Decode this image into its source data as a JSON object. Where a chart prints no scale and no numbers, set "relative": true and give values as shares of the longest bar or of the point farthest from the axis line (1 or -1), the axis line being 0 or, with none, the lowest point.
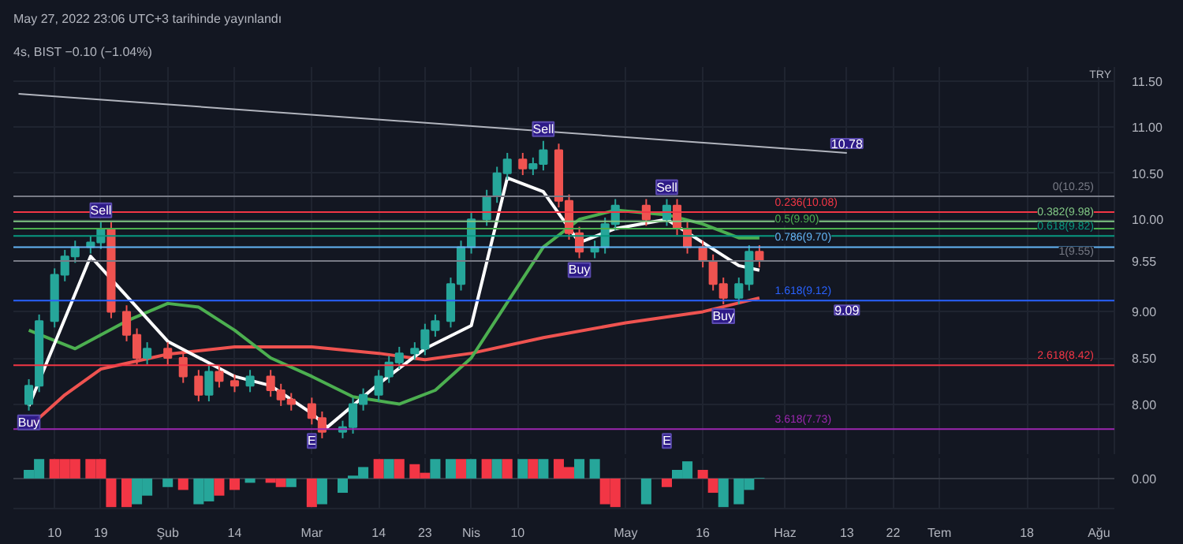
{
  "chart_data": [
    {
      "type": "candlestick",
      "title": "May 27, 2022 23:06 UTC+3 tarihinde yayınlandı",
      "subtitle": "4s, BIST  −0.10 (−1.04%)",
      "ylabel": "TRY",
      "x": [
        "2022-01-05",
        "2022-01-07",
        "2022-01-10",
        "2022-01-12",
        "2022-01-14",
        "2022-01-17",
        "2022-01-19",
        "2022-01-21",
        "2022-01-24",
        "2022-01-26",
        "2022-01-28",
        "2022-02-01",
        "2022-02-04",
        "2022-02-07",
        "2022-02-09",
        "2022-02-11",
        "2022-02-14",
        "2022-02-17",
        "2022-02-21",
        "2022-02-23",
        "2022-02-25",
        "2022-03-01",
        "2022-03-03",
        "2022-03-07",
        "2022-03-09",
        "2022-03-11",
        "2022-03-14",
        "2022-03-16",
        "2022-03-18",
        "2022-03-21",
        "2022-03-23",
        "2022-03-25",
        "2022-03-28",
        "2022-03-30",
        "2022-04-01",
        "2022-04-04",
        "2022-04-06",
        "2022-04-08",
        "2022-04-11",
        "2022-04-13",
        "2022-04-15",
        "2022-04-18",
        "2022-04-20",
        "2022-04-22",
        "2022-04-25",
        "2022-04-27",
        "2022-04-29",
        "2022-05-05",
        "2022-05-09",
        "2022-05-11",
        "2022-05-13",
        "2022-05-16",
        "2022-05-18",
        "2022-05-20",
        "2022-05-23",
        "2022-05-25",
        "2022-05-27"
      ],
      "ohlc": [
        [
          8.0,
          8.27,
          7.93,
          8.2
        ],
        [
          8.2,
          8.97,
          8.13,
          8.9
        ],
        [
          8.9,
          9.47,
          8.83,
          9.4
        ],
        [
          9.4,
          9.67,
          9.33,
          9.6
        ],
        [
          9.6,
          9.77,
          9.53,
          9.7
        ],
        [
          9.7,
          9.82,
          9.63,
          9.75
        ],
        [
          9.75,
          9.97,
          9.68,
          9.9
        ],
        [
          9.9,
          9.97,
          8.93,
          9.0
        ],
        [
          9.0,
          9.07,
          8.68,
          8.75
        ],
        [
          8.75,
          8.82,
          8.43,
          8.5
        ],
        [
          8.5,
          8.67,
          8.43,
          8.6
        ],
        [
          8.6,
          8.67,
          8.43,
          8.5
        ],
        [
          8.5,
          8.57,
          8.23,
          8.3
        ],
        [
          8.3,
          8.37,
          8.03,
          8.1
        ],
        [
          8.1,
          8.42,
          8.03,
          8.35
        ],
        [
          8.35,
          8.42,
          8.18,
          8.25
        ],
        [
          8.25,
          8.32,
          8.13,
          8.2
        ],
        [
          8.2,
          8.37,
          8.13,
          8.3
        ],
        [
          8.3,
          8.37,
          8.08,
          8.15
        ],
        [
          8.15,
          8.22,
          7.98,
          8.05
        ],
        [
          8.05,
          8.12,
          7.93,
          8.0
        ],
        [
          8.0,
          8.07,
          7.78,
          7.85
        ],
        [
          7.85,
          7.92,
          7.63,
          7.7
        ],
        [
          7.7,
          7.82,
          7.63,
          7.75
        ],
        [
          7.75,
          8.07,
          7.68,
          8.0
        ],
        [
          8.0,
          8.17,
          7.93,
          8.1
        ],
        [
          8.1,
          8.37,
          8.03,
          8.3
        ],
        [
          8.3,
          8.52,
          8.23,
          8.45
        ],
        [
          8.45,
          8.62,
          8.38,
          8.55
        ],
        [
          8.55,
          8.67,
          8.48,
          8.6
        ],
        [
          8.6,
          8.87,
          8.53,
          8.8
        ],
        [
          8.8,
          8.97,
          8.73,
          8.9
        ],
        [
          8.9,
          9.37,
          8.83,
          9.3
        ],
        [
          9.3,
          9.77,
          9.23,
          9.7
        ],
        [
          9.7,
          10.07,
          9.63,
          10.0
        ],
        [
          10.0,
          10.32,
          9.93,
          10.25
        ],
        [
          10.25,
          10.57,
          10.18,
          10.5
        ],
        [
          10.5,
          10.72,
          10.43,
          10.65
        ],
        [
          10.65,
          10.72,
          10.48,
          10.55
        ],
        [
          10.55,
          10.67,
          10.48,
          10.6
        ],
        [
          10.6,
          10.85,
          10.53,
          10.75
        ],
        [
          10.75,
          10.82,
          10.13,
          10.2
        ],
        [
          10.2,
          10.27,
          9.78,
          9.85
        ],
        [
          9.85,
          9.92,
          9.58,
          9.65
        ],
        [
          9.65,
          9.77,
          9.58,
          9.7
        ],
        [
          9.7,
          10.02,
          9.63,
          9.95
        ],
        [
          9.95,
          10.22,
          9.88,
          10.15
        ],
        [
          10.15,
          10.22,
          9.93,
          10.0
        ],
        [
          10.0,
          10.22,
          9.93,
          10.15
        ],
        [
          10.15,
          10.22,
          9.83,
          9.9
        ],
        [
          9.9,
          9.97,
          9.63,
          9.7
        ],
        [
          9.7,
          9.77,
          9.48,
          9.55
        ],
        [
          9.55,
          9.62,
          9.23,
          9.3
        ],
        [
          9.3,
          9.37,
          9.08,
          9.15
        ],
        [
          9.15,
          9.37,
          9.08,
          9.3
        ],
        [
          9.3,
          9.72,
          9.23,
          9.65
        ],
        [
          9.65,
          9.72,
          9.48,
          9.55
        ]
      ],
      "series": [
        {
          "type": "line",
          "color": "#b2b5be",
          "x": [
            "2022-01-03",
            "2022-06-13"
          ],
          "values": [
            11.36,
            10.72
          ]
        },
        {
          "type": "line",
          "color": "#ef5350",
          "x": [
            "2022-01-05",
            "2022-01-12",
            "2022-01-19",
            "2022-02-01",
            "2022-02-14",
            "2022-03-01",
            "2022-03-14",
            "2022-03-23",
            "2022-04-01",
            "2022-04-15",
            "2022-05-01",
            "2022-05-16",
            "2022-05-27"
          ],
          "values": [
            7.75,
            8.1,
            8.38,
            8.54,
            8.62,
            8.62,
            8.55,
            8.48,
            8.55,
            8.72,
            8.88,
            9.0,
            9.15
          ]
        },
        {
          "type": "line",
          "color": "#4caf50",
          "x": [
            "2022-01-05",
            "2022-01-14",
            "2022-01-24",
            "2022-02-01",
            "2022-02-07",
            "2022-02-14",
            "2022-02-21",
            "2022-03-01",
            "2022-03-09",
            "2022-03-18",
            "2022-03-25",
            "2022-04-01",
            "2022-04-08",
            "2022-04-15",
            "2022-04-22",
            "2022-04-29",
            "2022-05-09",
            "2022-05-16",
            "2022-05-23",
            "2022-05-27"
          ],
          "values": [
            8.8,
            8.6,
            8.9,
            9.09,
            9.05,
            8.8,
            8.5,
            8.3,
            8.08,
            8.0,
            8.15,
            8.5,
            9.1,
            9.7,
            10.0,
            10.1,
            10.05,
            9.95,
            9.8,
            9.8
          ]
        },
        {
          "type": "line",
          "color": "#ffffff",
          "x": [
            "2022-01-05",
            "2022-01-17",
            "2022-02-01",
            "2022-02-14",
            "2022-02-21",
            "2022-03-01",
            "2022-03-04",
            "2022-03-14",
            "2022-03-23",
            "2022-04-01",
            "2022-04-08",
            "2022-04-15",
            "2022-04-22",
            "2022-04-29",
            "2022-05-09",
            "2022-05-16",
            "2022-05-23",
            "2022-05-27"
          ],
          "values": [
            7.98,
            9.6,
            8.68,
            8.3,
            8.2,
            7.9,
            7.75,
            8.22,
            8.6,
            8.85,
            10.45,
            10.3,
            9.75,
            9.9,
            10.0,
            9.75,
            9.5,
            9.45
          ]
        }
      ],
      "xlim": [
        "2022-01-02",
        "2022-08-04"
      ],
      "xticks": [
        "2022-01-10",
        "2022-01-19",
        "2022-02-01",
        "2022-02-14",
        "2022-03-01",
        "2022-03-14",
        "2022-03-23",
        "2022-04-01",
        "2022-04-10",
        "2022-05-01",
        "2022-05-16",
        "2022-06-01",
        "2022-06-13",
        "2022-06-22",
        "2022-07-01",
        "2022-07-18",
        "2022-08-01"
      ],
      "ylim": [
        7.45,
        11.65
      ],
      "yticks": [
        {
          "value": 8,
          "label": "8.00"
        },
        {
          "value": 8.5,
          "label": "8.50"
        },
        {
          "value": 9,
          "label": "9.00"
        },
        {
          "value": 9.55,
          "label": "9.55"
        },
        {
          "value": 10,
          "label": "10.00"
        },
        {
          "value": 10.5,
          "label": "10.50"
        },
        {
          "value": 11,
          "label": "11.00"
        },
        {
          "value": 11.5,
          "label": "11.50"
        }
      ],
      "ref_lines": [
        {
          "axis": "y",
          "value": 10.25,
          "label": "0(10.25)",
          "color": "#787b86"
        },
        {
          "axis": "y",
          "value": 10.08,
          "label": "0.236(10.08)",
          "color": "#f23645"
        },
        {
          "axis": "y",
          "value": 9.98,
          "label": "0.382(9.98)",
          "color": "#81c784"
        },
        {
          "axis": "y",
          "value": 9.9,
          "label": "0.5(9.90)",
          "color": "#4caf50"
        },
        {
          "axis": "y",
          "value": 9.82,
          "label": "0.618(9.82)",
          "color": "#089981"
        },
        {
          "axis": "y",
          "value": 9.7,
          "label": "0.786(9.70)",
          "color": "#64b5f6"
        },
        {
          "axis": "y",
          "value": 9.55,
          "label": "1(9.55)",
          "color": "#787b86"
        },
        {
          "axis": "y",
          "value": 9.12,
          "label": "1.618(9.12)",
          "color": "#2962ff"
        },
        {
          "axis": "y",
          "value": 8.42,
          "label": "2.618(8.42)",
          "color": "#f23645"
        },
        {
          "axis": "y",
          "value": 7.73,
          "label": "3.618(7.73)",
          "color": "#9c27b0"
        }
      ],
      "annotations": [
        {
          "text": "10.78",
          "x": "2022-06-13",
          "y": 10.72
        },
        {
          "text": "9.09",
          "x": "2022-06-13",
          "y": 9.12
        },
        {
          "text": "Sell",
          "x": "2022-01-19",
          "y": 9.97
        },
        {
          "text": "Sell",
          "x": "2022-04-15",
          "y": 10.85
        },
        {
          "text": "Sell",
          "x": "2022-05-09",
          "y": 10.22
        },
        {
          "text": "Buy",
          "x": "2022-01-05",
          "y": 7.93
        },
        {
          "text": "Buy",
          "x": "2022-04-22",
          "y": 9.58
        },
        {
          "text": "Buy",
          "x": "2022-05-20",
          "y": 9.08
        },
        {
          "text": "E",
          "x": "2022-03-01",
          "y": 7.73
        },
        {
          "text": "E",
          "x": "2022-05-09",
          "y": 7.73
        }
      ],
      "grid": true,
      "tick_labels": "y"
    },
    {
      "type": "bar",
      "relative": true,
      "x": [
        "2022-01-05",
        "2022-01-07",
        "2022-01-10",
        "2022-01-12",
        "2022-01-14",
        "2022-01-17",
        "2022-01-19",
        "2022-01-21",
        "2022-01-24",
        "2022-01-26",
        "2022-01-28",
        "2022-02-01",
        "2022-02-04",
        "2022-02-07",
        "2022-02-09",
        "2022-02-11",
        "2022-02-14",
        "2022-02-17",
        "2022-02-21",
        "2022-02-23",
        "2022-02-25",
        "2022-03-01",
        "2022-03-03",
        "2022-03-07",
        "2022-03-09",
        "2022-03-11",
        "2022-03-14",
        "2022-03-16",
        "2022-03-18",
        "2022-03-21",
        "2022-03-23",
        "2022-03-25",
        "2022-03-28",
        "2022-03-30",
        "2022-04-01",
        "2022-04-04",
        "2022-04-06",
        "2022-04-08",
        "2022-04-11",
        "2022-04-13",
        "2022-04-15",
        "2022-04-18",
        "2022-04-20",
        "2022-04-22",
        "2022-04-25",
        "2022-04-27",
        "2022-04-29",
        "2022-05-05",
        "2022-05-09",
        "2022-05-11",
        "2022-05-13",
        "2022-05-16",
        "2022-05-18",
        "2022-05-20",
        "2022-05-23",
        "2022-05-25",
        "2022-05-27"
      ],
      "values": [
        0.3,
        0.68,
        0.68,
        0.68,
        0.68,
        0.68,
        0.68,
        -1,
        -1,
        -0.9,
        -0.6,
        -0.3,
        -0.4,
        -0.9,
        -0.8,
        -0.6,
        -0.4,
        -0.15,
        -0.15,
        -0.3,
        -0.3,
        -1,
        -0.9,
        -0.5,
        0.1,
        0.4,
        0.68,
        0.68,
        0.68,
        0.5,
        0.2,
        0.68,
        0.68,
        0.68,
        0.68,
        0.68,
        0.68,
        0.68,
        0.68,
        0.68,
        0.68,
        0.68,
        0.4,
        0.68,
        0.68,
        -0.9,
        -1,
        -0.9,
        -0.3,
        0.3,
        0.6,
        0.3,
        -0.5,
        -1,
        -0.9,
        -0.4,
        0.02
      ],
      "colors": [
        "#26a69a",
        "#26a69a",
        "#f23645",
        "#f23645",
        "#f23645",
        "#f23645",
        "#f23645",
        "#f23645",
        "#f23645",
        "#26a69a",
        "#26a69a",
        "#26a69a",
        "#f23645",
        "#26a69a",
        "#26a69a",
        "#f23645",
        "#f23645",
        "#26a69a",
        "#f23645",
        "#f23645",
        "#26a69a",
        "#f23645",
        "#26a69a",
        "#26a69a",
        "#26a69a",
        "#26a69a",
        "#f23645",
        "#26a69a",
        "#f23645",
        "#f23645",
        "#f23645",
        "#26a69a",
        "#26a69a",
        "#f23645",
        "#26a69a",
        "#f23645",
        "#26a69a",
        "#f23645",
        "#26a69a",
        "#f23645",
        "#26a69a",
        "#f23645",
        "#f23645",
        "#26a69a",
        "#26a69a",
        "#f23645",
        "#f23645",
        "#26a69a",
        "#f23645",
        "#26a69a",
        "#26a69a",
        "#f23645",
        "#f23645",
        "#26a69a",
        "#26a69a",
        "#26a69a",
        "#26a69a"
      ],
      "xlim": [
        "2022-01-02",
        "2022-08-04"
      ],
      "xticks": [
        {
          "value": "2022-01-10",
          "label": "10"
        },
        {
          "value": "2022-01-19",
          "label": "19"
        },
        {
          "value": "2022-02-01",
          "label": "Şub"
        },
        {
          "value": "2022-02-14",
          "label": "14"
        },
        {
          "value": "2022-03-01",
          "label": "Mar"
        },
        {
          "value": "2022-03-14",
          "label": "14"
        },
        {
          "value": "2022-03-23",
          "label": "23"
        },
        {
          "value": "2022-04-01",
          "label": "Nis"
        },
        {
          "value": "2022-04-10",
          "label": "10"
        },
        {
          "value": "2022-05-01",
          "label": "May"
        },
        {
          "value": "2022-05-16",
          "label": "16"
        },
        {
          "value": "2022-06-01",
          "label": "Haz"
        },
        {
          "value": "2022-06-13",
          "label": "13"
        },
        {
          "value": "2022-06-22",
          "label": "22"
        },
        {
          "value": "2022-07-01",
          "label": "Tem"
        },
        {
          "value": "2022-07-18",
          "label": "18"
        },
        {
          "value": "2022-08-01",
          "label": "Ağu"
        }
      ],
      "ref_lines": [
        {
          "axis": "y",
          "value": 0,
          "label": "0.00",
          "color": "#363a45"
        }
      ],
      "grid": true
    }
  ]
}
